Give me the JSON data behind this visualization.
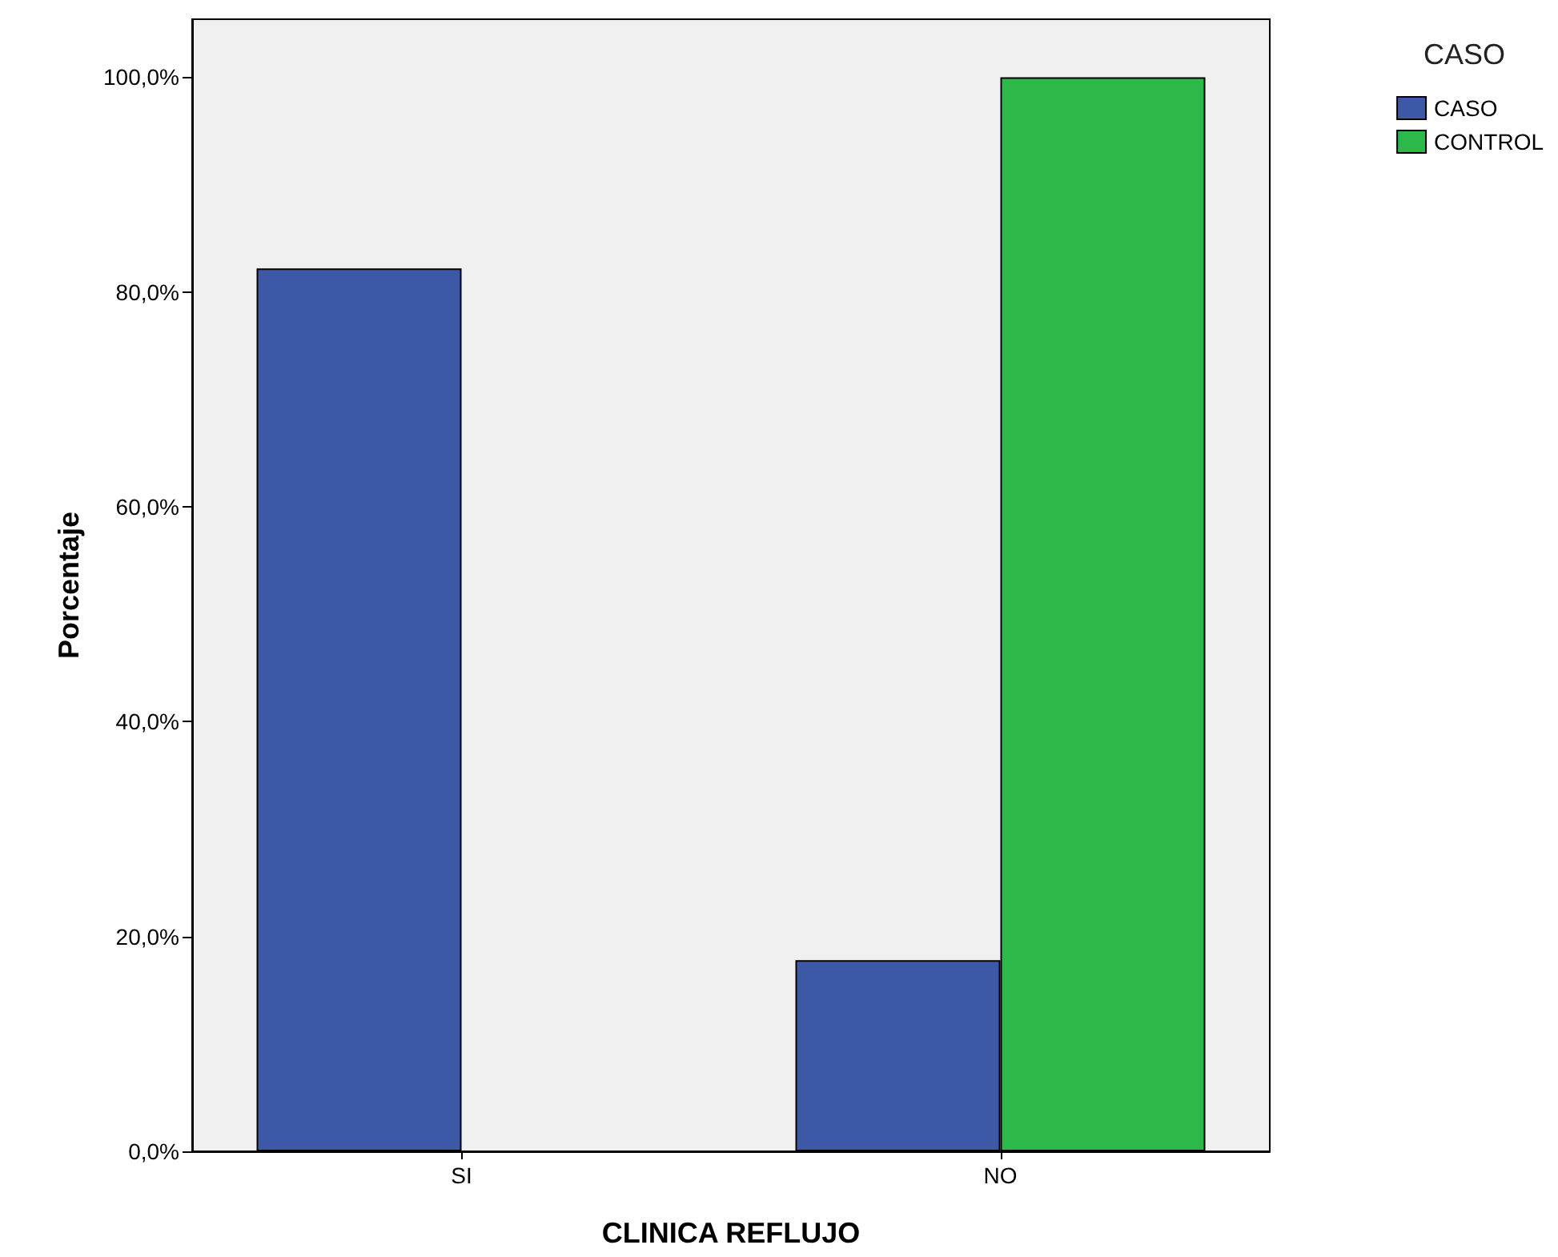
{
  "chart_data": {
    "type": "bar",
    "xlabel": "CLINICA REFLUJO",
    "ylabel": "Porcentaje",
    "legend_title": "CASO",
    "categories": [
      "SI",
      "NO"
    ],
    "series": [
      {
        "name": "CASO",
        "color": "#3e58a8",
        "values": [
          82.2,
          17.8
        ]
      },
      {
        "name": "CONTROL",
        "color": "#2db84a",
        "values": [
          0,
          100
        ]
      }
    ],
    "ylim": [
      0,
      105.4
    ],
    "yticks": [
      {
        "value": 0,
        "label": "0,0%"
      },
      {
        "value": 20,
        "label": "20,0%"
      },
      {
        "value": 40,
        "label": "40,0%"
      },
      {
        "value": 60,
        "label": "60,0%"
      },
      {
        "value": 80,
        "label": "80,0%"
      },
      {
        "value": 100,
        "label": "100,0%"
      }
    ],
    "grid": false,
    "legend": "top right"
  }
}
